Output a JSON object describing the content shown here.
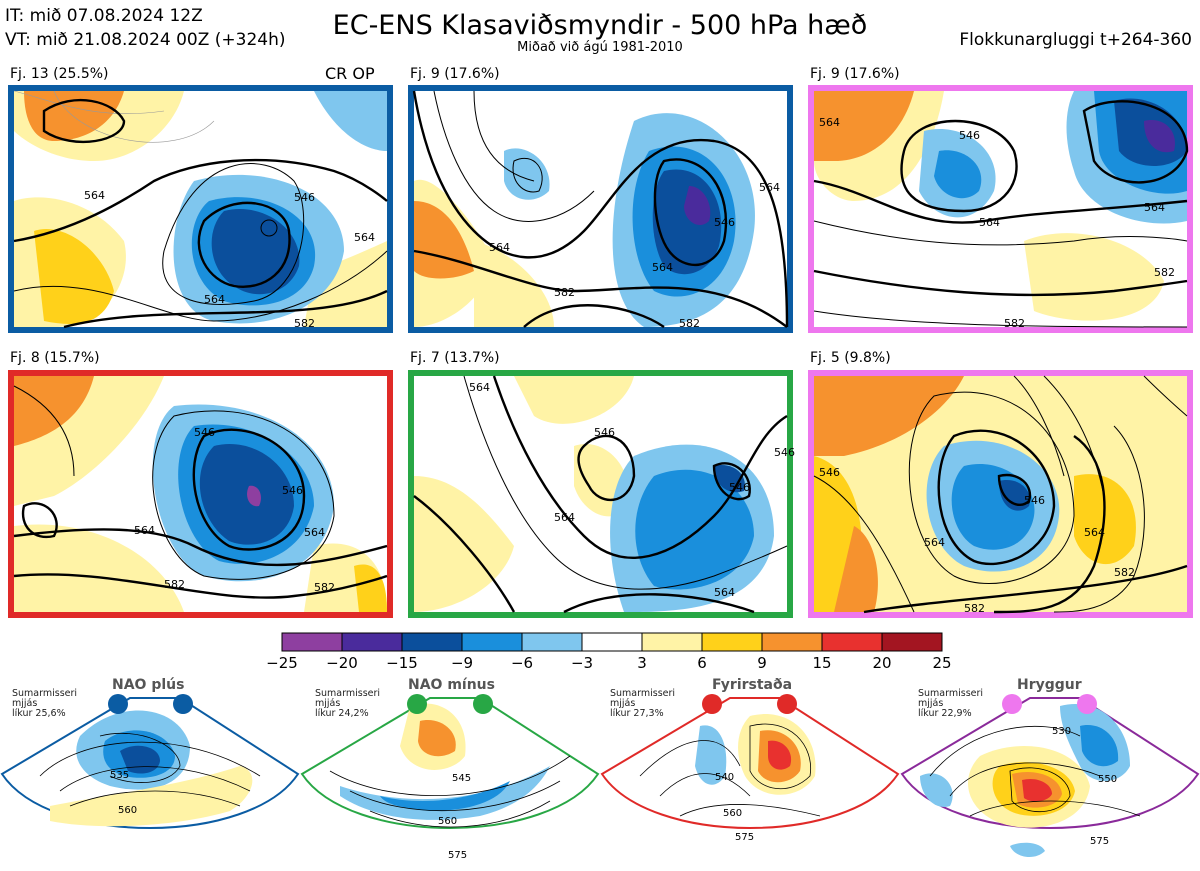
{
  "header": {
    "it_line": "IT: mið 07.08.2024 12Z",
    "vt_line": "VT: mið 21.08.2024 00Z  (+324h)",
    "title": "EC-ENS Klasaviðsmyndir - 500 hPa hæð",
    "subtitle": "Miðað við ágú 1981-2010",
    "window": "Flokkunargluggi t+264-360",
    "cr_op": "CR OP"
  },
  "colors": {
    "blue": "#0b5ca3",
    "pink": "#ee77ee",
    "red": "#e02a28",
    "green": "#28a745",
    "purple": "#8a2a9a"
  },
  "panels": [
    {
      "label": "Fj. 13 (25.5%)",
      "border": "blue",
      "contours": [
        "564",
        "546",
        "564",
        "564",
        "582"
      ]
    },
    {
      "label": "Fj. 9 (17.6%)",
      "border": "blue",
      "contours": [
        "564",
        "546",
        "564",
        "582",
        "582",
        "564"
      ]
    },
    {
      "label": "Fj. 9 (17.6%)",
      "border": "pink",
      "contours": [
        "564",
        "546",
        "564",
        "564",
        "582",
        "582"
      ]
    },
    {
      "label": "Fj. 8 (15.7%)",
      "border": "red",
      "contours": [
        "546",
        "546",
        "564",
        "564",
        "582",
        "582"
      ]
    },
    {
      "label": "Fj. 7 (13.7%)",
      "border": "green",
      "contours": [
        "564",
        "546",
        "546",
        "564",
        "564",
        "546"
      ]
    },
    {
      "label": "Fj. 5 (9.8%)",
      "border": "pink",
      "contours": [
        "546",
        "546",
        "564",
        "564",
        "582",
        "582"
      ]
    }
  ],
  "colorbar": {
    "labels": [
      "−25",
      "−20",
      "−15",
      "−9",
      "−6",
      "−3",
      "3",
      "6",
      "9",
      "15",
      "20",
      "25"
    ],
    "colors": [
      "#8e3fa0",
      "#4a2b9c",
      "#0b4f9c",
      "#1a8fdc",
      "#7fc6ee",
      "#ffffff",
      "#fff3a6",
      "#ffd11a",
      "#f6922e",
      "#e8312f",
      "#a31521"
    ]
  },
  "regimes": [
    {
      "name": "NAO plús",
      "info": [
        "Sumarmisseri",
        "mjjás",
        "líkur 25,6%"
      ],
      "dot_color": "blue",
      "contours": [
        "535",
        "560"
      ]
    },
    {
      "name": "NAO mínus",
      "info": [
        "Sumarmisseri",
        "mjjás",
        "líkur 24,2%"
      ],
      "dot_color": "green",
      "contours": [
        "545",
        "560",
        "575"
      ]
    },
    {
      "name": "Fyrirstaða",
      "info": [
        "Sumarmisseri",
        "mjjás",
        "líkur 27,3%"
      ],
      "dot_color": "red",
      "contours": [
        "540",
        "560",
        "575"
      ]
    },
    {
      "name": "Hryggur",
      "info": [
        "Sumarmisseri",
        "mjjás",
        "líkur 22,9%"
      ],
      "dot_color": "purple",
      "contours": [
        "530",
        "550",
        "575"
      ]
    }
  ]
}
